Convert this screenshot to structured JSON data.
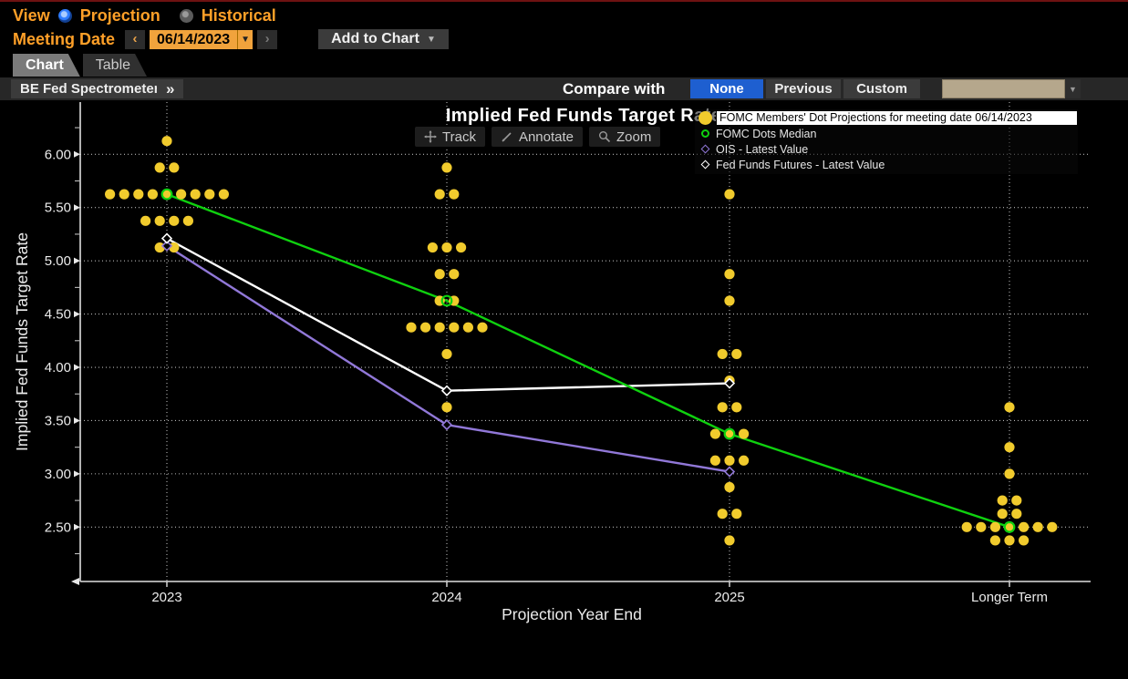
{
  "view_bar": {
    "label": "View",
    "options": [
      {
        "label": "Projection",
        "selected": true
      },
      {
        "label": "Historical",
        "selected": false
      }
    ]
  },
  "date_bar": {
    "label": "Meeting Date",
    "prev": "‹",
    "value": "06/14/2023",
    "caret": "▼",
    "next": "›",
    "add_to_chart": "Add to Chart",
    "add_caret": "▼"
  },
  "tabs": [
    {
      "label": "Chart",
      "active": true
    },
    {
      "label": "Table",
      "active": false
    }
  ],
  "toolbar_strip": {
    "spectrometer": "BE Fed Spectrometer",
    "chevrons": "»",
    "compare_label": "Compare with",
    "compare_options": [
      {
        "label": "None",
        "selected": true
      },
      {
        "label": "Previous",
        "selected": false
      },
      {
        "label": "Custom",
        "selected": false
      }
    ],
    "dropdown_caret": "▼"
  },
  "chart_toolbar": [
    {
      "label": "Track",
      "icon": "crosshair-icon"
    },
    {
      "label": "Annotate",
      "icon": "pencil-icon"
    },
    {
      "label": "Zoom",
      "icon": "magnifier-icon"
    }
  ],
  "chart_data": {
    "type": "scatter",
    "title": "Implied Fed Funds Target Rate",
    "xlabel": "Projection Year End",
    "ylabel": "Implied Fed Funds Target Rate",
    "categories": [
      "2023",
      "2024",
      "2025",
      "Longer Term"
    ],
    "ylim": [
      2.0,
      6.5
    ],
    "yticks": [
      2.5,
      3.0,
      3.5,
      4.0,
      4.5,
      5.0,
      5.5,
      6.0
    ],
    "grid": "dotted",
    "legend_position": "top-right",
    "colors": {
      "dots": "#f1cb2d",
      "median": "#0fd10f",
      "ois": "#9178d8",
      "futures": "#ffffff"
    },
    "legend": [
      {
        "label": "FOMC Members' Dot Projections for meeting date 06/14/2023",
        "marker": "filled-circle",
        "color": "#f1cb2d",
        "highlighted": true
      },
      {
        "label": "FOMC Dots Median",
        "marker": "open-circle",
        "color": "#0fd10f",
        "highlighted": false
      },
      {
        "label": "OIS - Latest Value",
        "marker": "open-diamond",
        "color": "#9178d8",
        "highlighted": false
      },
      {
        "label": "Fed Funds Futures - Latest Value",
        "marker": "open-diamond",
        "color": "#ffffff",
        "highlighted": false
      }
    ],
    "dots": [
      {
        "category": "2023",
        "value": 6.125,
        "count": 1
      },
      {
        "category": "2023",
        "value": 5.875,
        "count": 2
      },
      {
        "category": "2023",
        "value": 5.625,
        "count": 9
      },
      {
        "category": "2023",
        "value": 5.375,
        "count": 4
      },
      {
        "category": "2023",
        "value": 5.125,
        "count": 2
      },
      {
        "category": "2024",
        "value": 5.875,
        "count": 1
      },
      {
        "category": "2024",
        "value": 5.625,
        "count": 2
      },
      {
        "category": "2024",
        "value": 5.125,
        "count": 3
      },
      {
        "category": "2024",
        "value": 4.875,
        "count": 2
      },
      {
        "category": "2024",
        "value": 4.625,
        "count": 2
      },
      {
        "category": "2024",
        "value": 4.375,
        "count": 6
      },
      {
        "category": "2024",
        "value": 4.125,
        "count": 1
      },
      {
        "category": "2024",
        "value": 3.625,
        "count": 1
      },
      {
        "category": "2025",
        "value": 5.625,
        "count": 1
      },
      {
        "category": "2025",
        "value": 4.875,
        "count": 1
      },
      {
        "category": "2025",
        "value": 4.625,
        "count": 1
      },
      {
        "category": "2025",
        "value": 4.125,
        "count": 2
      },
      {
        "category": "2025",
        "value": 3.875,
        "count": 1
      },
      {
        "category": "2025",
        "value": 3.625,
        "count": 2
      },
      {
        "category": "2025",
        "value": 3.375,
        "count": 3
      },
      {
        "category": "2025",
        "value": 3.125,
        "count": 3
      },
      {
        "category": "2025",
        "value": 2.875,
        "count": 1
      },
      {
        "category": "2025",
        "value": 2.625,
        "count": 2
      },
      {
        "category": "2025",
        "value": 2.375,
        "count": 1
      },
      {
        "category": "Longer Term",
        "value": 3.625,
        "count": 1
      },
      {
        "category": "Longer Term",
        "value": 3.25,
        "count": 1
      },
      {
        "category": "Longer Term",
        "value": 3.0,
        "count": 1
      },
      {
        "category": "Longer Term",
        "value": 2.75,
        "count": 2
      },
      {
        "category": "Longer Term",
        "value": 2.625,
        "count": 2
      },
      {
        "category": "Longer Term",
        "value": 2.5,
        "count": 7
      },
      {
        "category": "Longer Term",
        "value": 2.375,
        "count": 3
      }
    ],
    "series": [
      {
        "name": "OIS - Latest Value",
        "color": "#9178d8",
        "marker": "open-diamond",
        "points": [
          [
            "2023",
            5.14
          ],
          [
            "2024",
            3.46
          ],
          [
            "2025",
            3.02
          ]
        ]
      },
      {
        "name": "Fed Funds Futures - Latest Value",
        "color": "#ffffff",
        "marker": "open-diamond",
        "points": [
          [
            "2023",
            5.21
          ],
          [
            "2024",
            3.78
          ],
          [
            "2025",
            3.85
          ]
        ]
      },
      {
        "name": "FOMC Dots Median",
        "color": "#0fd10f",
        "marker": "open-circle",
        "points": [
          [
            "2023",
            5.625
          ],
          [
            "2024",
            4.625
          ],
          [
            "2025",
            3.375
          ],
          [
            "Longer Term",
            2.5
          ]
        ]
      }
    ]
  }
}
